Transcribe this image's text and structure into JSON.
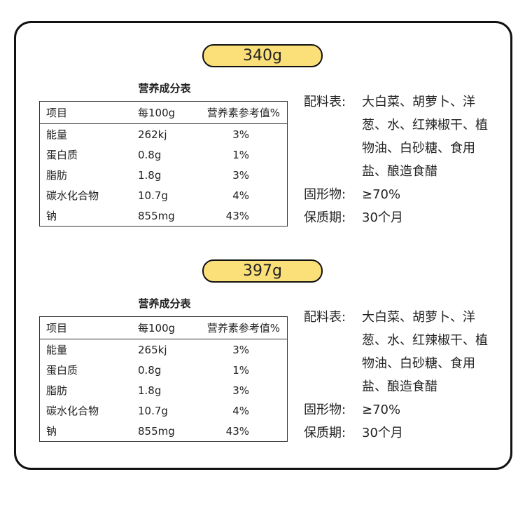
{
  "sections": [
    {
      "weight": "340g",
      "table_title": "营养成分表",
      "headers": [
        "项目",
        "每100g",
        "营养素参考值%"
      ],
      "rows": [
        [
          "能量",
          "262kj",
          "3%"
        ],
        [
          "蛋白质",
          "0.8g",
          "1%"
        ],
        [
          "脂肪",
          "1.8g",
          "3%"
        ],
        [
          "碳水化合物",
          "10.7g",
          "4%"
        ],
        [
          "钠",
          "855mg",
          "43%"
        ]
      ],
      "info": [
        {
          "label": "配料表:",
          "value": "大白菜、胡萝卜、洋葱、水、红辣椒干、植物油、白砂糖、食用盐、酿造食醋"
        },
        {
          "label": "固形物:",
          "value": "≥70%"
        },
        {
          "label": "保质期:",
          "value": "30个月"
        }
      ]
    },
    {
      "weight": "397g",
      "table_title": "营养成分表",
      "headers": [
        "项目",
        "每100g",
        "营养素参考值%"
      ],
      "rows": [
        [
          "能量",
          "265kj",
          "3%"
        ],
        [
          "蛋白质",
          "0.8g",
          "1%"
        ],
        [
          "脂肪",
          "1.8g",
          "3%"
        ],
        [
          "碳水化合物",
          "10.7g",
          "4%"
        ],
        [
          "钠",
          "855mg",
          "43%"
        ]
      ],
      "info": [
        {
          "label": "配料表:",
          "value": "大白菜、胡萝卜、洋葱、水、红辣椒干、植物油、白砂糖、食用盐、酿造食醋"
        },
        {
          "label": "固形物:",
          "value": "≥70%"
        },
        {
          "label": "保质期:",
          "value": "30个月"
        }
      ]
    }
  ],
  "colors": {
    "pill": "#fbe07a",
    "border": "#111111"
  }
}
